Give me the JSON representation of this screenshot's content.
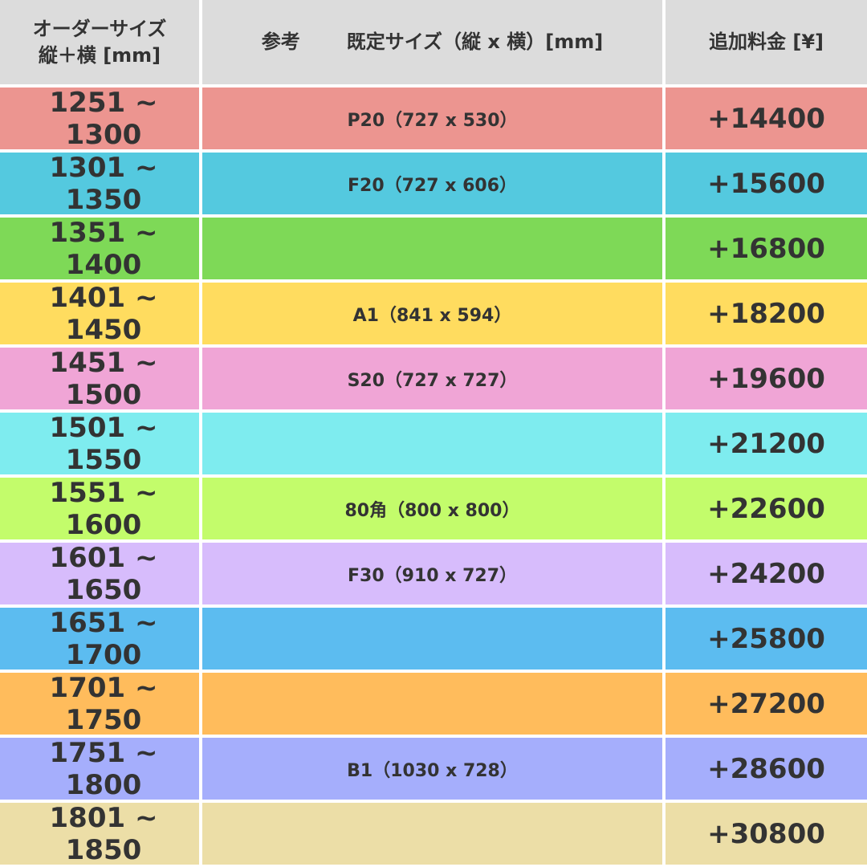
{
  "table": {
    "header": {
      "size": [
        "オーダーサイズ",
        "縦＋横 [mm]"
      ],
      "reference": [
        "参考",
        "既定サイズ（縦 x 横）[mm]"
      ],
      "price": "追加料金 [¥]"
    },
    "rows": [
      {
        "size": "1251 ~ 1300",
        "reference": "P20（727 x 530）",
        "price": "+14400",
        "color": "#ec9590"
      },
      {
        "size": "1301 ~ 1350",
        "reference": "F20（727 x 606）",
        "price": "+15600",
        "color": "#54c9df"
      },
      {
        "size": "1351 ~ 1400",
        "reference": null,
        "price": "+16800",
        "color": "#7ed957"
      },
      {
        "size": "1401 ~ 1450",
        "reference": "A1（841 x 594）",
        "price": "+18200",
        "color": "#ffdc5f"
      },
      {
        "size": "1451 ~ 1500",
        "reference": "S20（727 x 727）",
        "price": "+19600",
        "color": "#f0a5d6"
      },
      {
        "size": "1501 ~ 1550",
        "reference": null,
        "price": "+21200",
        "color": "#7eecef"
      },
      {
        "size": "1551 ~ 1600",
        "reference": "80角（800 x 800）",
        "price": "+22600",
        "color": "#c3fc6b"
      },
      {
        "size": "1601 ~ 1650",
        "reference": "F30（910 x 727）",
        "price": "+24200",
        "color": "#d7bcfc"
      },
      {
        "size": "1651 ~ 1700",
        "reference": null,
        "price": "+25800",
        "color": "#5cbcf0"
      },
      {
        "size": "1701 ~ 1750",
        "reference": null,
        "price": "+27200",
        "color": "#ffbc5c"
      },
      {
        "size": "1751 ~ 1800",
        "reference": "B1（1030 x 728）",
        "price": "+28600",
        "color": "#a5aefc"
      },
      {
        "size": "1801 ~ 1850",
        "reference": null,
        "price": "+30800",
        "color": "#ecdea7"
      }
    ]
  }
}
